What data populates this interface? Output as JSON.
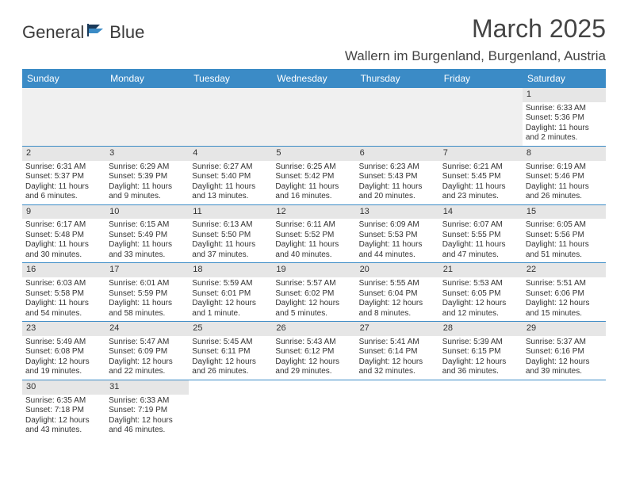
{
  "logo": {
    "text1": "General",
    "text2": "Blue"
  },
  "title": "March 2025",
  "location": "Wallern im Burgenland, Burgenland, Austria",
  "colors": {
    "header_bg": "#3b8bc6",
    "daynum_bg": "#e6e6e6",
    "empty_bg": "#f0f0f0",
    "border": "#3b8bc6",
    "text": "#333333"
  },
  "days_of_week": [
    "Sunday",
    "Monday",
    "Tuesday",
    "Wednesday",
    "Thursday",
    "Friday",
    "Saturday"
  ],
  "weeks": [
    [
      null,
      null,
      null,
      null,
      null,
      null,
      {
        "n": "1",
        "sr": "Sunrise: 6:33 AM",
        "ss": "Sunset: 5:36 PM",
        "dl": "Daylight: 11 hours and 2 minutes."
      }
    ],
    [
      {
        "n": "2",
        "sr": "Sunrise: 6:31 AM",
        "ss": "Sunset: 5:37 PM",
        "dl": "Daylight: 11 hours and 6 minutes."
      },
      {
        "n": "3",
        "sr": "Sunrise: 6:29 AM",
        "ss": "Sunset: 5:39 PM",
        "dl": "Daylight: 11 hours and 9 minutes."
      },
      {
        "n": "4",
        "sr": "Sunrise: 6:27 AM",
        "ss": "Sunset: 5:40 PM",
        "dl": "Daylight: 11 hours and 13 minutes."
      },
      {
        "n": "5",
        "sr": "Sunrise: 6:25 AM",
        "ss": "Sunset: 5:42 PM",
        "dl": "Daylight: 11 hours and 16 minutes."
      },
      {
        "n": "6",
        "sr": "Sunrise: 6:23 AM",
        "ss": "Sunset: 5:43 PM",
        "dl": "Daylight: 11 hours and 20 minutes."
      },
      {
        "n": "7",
        "sr": "Sunrise: 6:21 AM",
        "ss": "Sunset: 5:45 PM",
        "dl": "Daylight: 11 hours and 23 minutes."
      },
      {
        "n": "8",
        "sr": "Sunrise: 6:19 AM",
        "ss": "Sunset: 5:46 PM",
        "dl": "Daylight: 11 hours and 26 minutes."
      }
    ],
    [
      {
        "n": "9",
        "sr": "Sunrise: 6:17 AM",
        "ss": "Sunset: 5:48 PM",
        "dl": "Daylight: 11 hours and 30 minutes."
      },
      {
        "n": "10",
        "sr": "Sunrise: 6:15 AM",
        "ss": "Sunset: 5:49 PM",
        "dl": "Daylight: 11 hours and 33 minutes."
      },
      {
        "n": "11",
        "sr": "Sunrise: 6:13 AM",
        "ss": "Sunset: 5:50 PM",
        "dl": "Daylight: 11 hours and 37 minutes."
      },
      {
        "n": "12",
        "sr": "Sunrise: 6:11 AM",
        "ss": "Sunset: 5:52 PM",
        "dl": "Daylight: 11 hours and 40 minutes."
      },
      {
        "n": "13",
        "sr": "Sunrise: 6:09 AM",
        "ss": "Sunset: 5:53 PM",
        "dl": "Daylight: 11 hours and 44 minutes."
      },
      {
        "n": "14",
        "sr": "Sunrise: 6:07 AM",
        "ss": "Sunset: 5:55 PM",
        "dl": "Daylight: 11 hours and 47 minutes."
      },
      {
        "n": "15",
        "sr": "Sunrise: 6:05 AM",
        "ss": "Sunset: 5:56 PM",
        "dl": "Daylight: 11 hours and 51 minutes."
      }
    ],
    [
      {
        "n": "16",
        "sr": "Sunrise: 6:03 AM",
        "ss": "Sunset: 5:58 PM",
        "dl": "Daylight: 11 hours and 54 minutes."
      },
      {
        "n": "17",
        "sr": "Sunrise: 6:01 AM",
        "ss": "Sunset: 5:59 PM",
        "dl": "Daylight: 11 hours and 58 minutes."
      },
      {
        "n": "18",
        "sr": "Sunrise: 5:59 AM",
        "ss": "Sunset: 6:01 PM",
        "dl": "Daylight: 12 hours and 1 minute."
      },
      {
        "n": "19",
        "sr": "Sunrise: 5:57 AM",
        "ss": "Sunset: 6:02 PM",
        "dl": "Daylight: 12 hours and 5 minutes."
      },
      {
        "n": "20",
        "sr": "Sunrise: 5:55 AM",
        "ss": "Sunset: 6:04 PM",
        "dl": "Daylight: 12 hours and 8 minutes."
      },
      {
        "n": "21",
        "sr": "Sunrise: 5:53 AM",
        "ss": "Sunset: 6:05 PM",
        "dl": "Daylight: 12 hours and 12 minutes."
      },
      {
        "n": "22",
        "sr": "Sunrise: 5:51 AM",
        "ss": "Sunset: 6:06 PM",
        "dl": "Daylight: 12 hours and 15 minutes."
      }
    ],
    [
      {
        "n": "23",
        "sr": "Sunrise: 5:49 AM",
        "ss": "Sunset: 6:08 PM",
        "dl": "Daylight: 12 hours and 19 minutes."
      },
      {
        "n": "24",
        "sr": "Sunrise: 5:47 AM",
        "ss": "Sunset: 6:09 PM",
        "dl": "Daylight: 12 hours and 22 minutes."
      },
      {
        "n": "25",
        "sr": "Sunrise: 5:45 AM",
        "ss": "Sunset: 6:11 PM",
        "dl": "Daylight: 12 hours and 26 minutes."
      },
      {
        "n": "26",
        "sr": "Sunrise: 5:43 AM",
        "ss": "Sunset: 6:12 PM",
        "dl": "Daylight: 12 hours and 29 minutes."
      },
      {
        "n": "27",
        "sr": "Sunrise: 5:41 AM",
        "ss": "Sunset: 6:14 PM",
        "dl": "Daylight: 12 hours and 32 minutes."
      },
      {
        "n": "28",
        "sr": "Sunrise: 5:39 AM",
        "ss": "Sunset: 6:15 PM",
        "dl": "Daylight: 12 hours and 36 minutes."
      },
      {
        "n": "29",
        "sr": "Sunrise: 5:37 AM",
        "ss": "Sunset: 6:16 PM",
        "dl": "Daylight: 12 hours and 39 minutes."
      }
    ],
    [
      {
        "n": "30",
        "sr": "Sunrise: 6:35 AM",
        "ss": "Sunset: 7:18 PM",
        "dl": "Daylight: 12 hours and 43 minutes."
      },
      {
        "n": "31",
        "sr": "Sunrise: 6:33 AM",
        "ss": "Sunset: 7:19 PM",
        "dl": "Daylight: 12 hours and 46 minutes."
      },
      null,
      null,
      null,
      null,
      null
    ]
  ]
}
